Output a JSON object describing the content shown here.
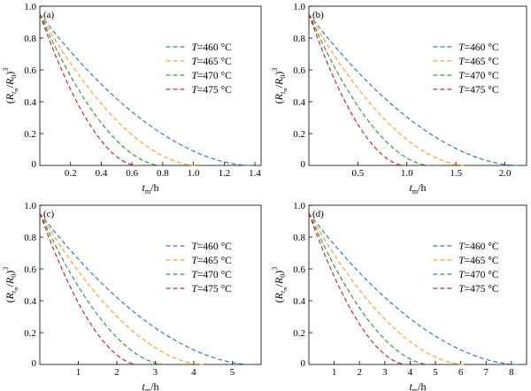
{
  "axis_labels": {
    "x": {
      "base": "t",
      "sub": "m",
      "tail": "/h"
    },
    "y": {
      "open": "(R",
      "sub1": "t",
      "sub2": "m",
      "mid": "/R",
      "sub3": "0",
      "close": ")",
      "sup": "3"
    }
  },
  "legend_items": [
    {
      "var": "T",
      "text": "=460 °C",
      "color": "#2f6db5"
    },
    {
      "var": "T",
      "text": "=465 °C",
      "color": "#f39c1e"
    },
    {
      "var": "T",
      "text": "=470 °C",
      "color": "#2e8b38"
    },
    {
      "var": "T",
      "text": "=475 °C",
      "color": "#b22222"
    }
  ],
  "chart_data": [
    {
      "type": "line",
      "panel_label": "(a)",
      "xlim": [
        0,
        1.44
      ],
      "ylim": [
        0,
        1.0
      ],
      "xticks": [
        0.2,
        0.4,
        0.6,
        0.8,
        1.0,
        1.2,
        1.4
      ],
      "xtick_labels": [
        "0.2",
        "0.4",
        "0.6",
        "0.8",
        "1.0",
        "1.2",
        "1.4"
      ],
      "yticks": [
        0.2,
        0.4,
        0.6,
        0.8,
        1.0
      ],
      "ytick_labels": [
        "0.2",
        "0.4",
        "0.6",
        "0.8",
        "1.0"
      ],
      "origin_label": "0",
      "legend_position": "center-right",
      "series_tmax": [
        1.37,
        1.02,
        0.79,
        0.63
      ],
      "y0": 0.95,
      "shape": 1.8
    },
    {
      "type": "line",
      "panel_label": "(b)",
      "xlim": [
        0,
        2.22
      ],
      "ylim": [
        0,
        1.0
      ],
      "xticks": [
        0.5,
        1.0,
        1.5,
        2.0
      ],
      "xtick_labels": [
        "0.5",
        "1.0",
        "1.5",
        "2.0"
      ],
      "yticks": [
        0.2,
        0.4,
        0.6,
        0.8,
        1.0
      ],
      "ytick_labels": [
        "0.2",
        "0.4",
        "0.6",
        "0.8",
        "1.0"
      ],
      "origin_label": "0",
      "legend_position": "center-right",
      "series_tmax": [
        2.13,
        1.6,
        1.23,
        0.97
      ],
      "y0": 0.95,
      "shape": 1.8
    },
    {
      "type": "line",
      "panel_label": "(c)",
      "xlim": [
        0,
        5.75
      ],
      "ylim": [
        0,
        1.0
      ],
      "xticks": [
        1,
        2,
        3,
        4,
        5
      ],
      "xtick_labels": [
        "1",
        "2",
        "3",
        "4",
        "5"
      ],
      "yticks": [
        0.2,
        0.4,
        0.6,
        0.8,
        1.0
      ],
      "ytick_labels": [
        "0.2",
        "0.4",
        "0.6",
        "0.8",
        "1.0"
      ],
      "origin_label": "0",
      "legend_position": "center-right",
      "series_tmax": [
        5.5,
        4.25,
        3.25,
        2.55
      ],
      "y0": 0.95,
      "shape": 1.8
    },
    {
      "type": "line",
      "panel_label": "(d)",
      "xlim": [
        0,
        8.6
      ],
      "ylim": [
        0,
        1.0
      ],
      "xticks": [
        1,
        2,
        3,
        4,
        5,
        6,
        7,
        8
      ],
      "xtick_labels": [
        "1",
        "2",
        "3",
        "4",
        "5",
        "6",
        "7",
        "8"
      ],
      "yticks": [
        0.2,
        0.4,
        0.6,
        0.8,
        1.0
      ],
      "ytick_labels": [
        "0.2",
        "0.4",
        "0.6",
        "0.8",
        "1.0"
      ],
      "origin_label": "0",
      "legend_position": "center-right",
      "series_tmax": [
        8.25,
        6.15,
        4.75,
        3.85
      ],
      "y0": 0.95,
      "shape": 1.8
    }
  ]
}
